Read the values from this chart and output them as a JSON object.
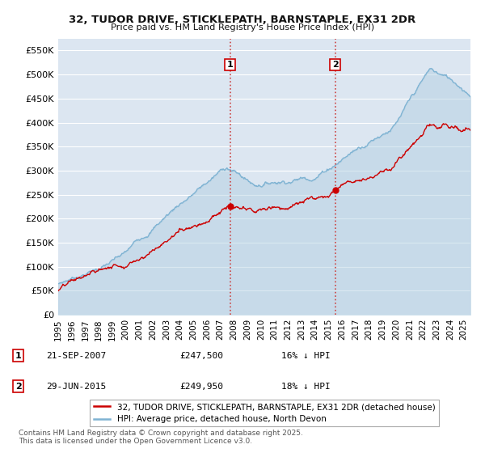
{
  "title_line1": "32, TUDOR DRIVE, STICKLEPATH, BARNSTAPLE, EX31 2DR",
  "title_line2": "Price paid vs. HM Land Registry's House Price Index (HPI)",
  "background_color": "#ffffff",
  "plot_bg_color": "#dce6f1",
  "grid_color": "#ffffff",
  "hpi_color": "#7fb3d3",
  "hpi_fill_color": "#aecde0",
  "price_color": "#cc0000",
  "vline_color": "#cc4444",
  "xmin": 1995,
  "xmax": 2025.5,
  "ymin": 0,
  "ymax": 575000,
  "yticks": [
    0,
    50000,
    100000,
    150000,
    200000,
    250000,
    300000,
    350000,
    400000,
    450000,
    500000,
    550000
  ],
  "ytick_labels": [
    "£0",
    "£50K",
    "£100K",
    "£150K",
    "£200K",
    "£250K",
    "£300K",
    "£350K",
    "£400K",
    "£450K",
    "£500K",
    "£550K"
  ],
  "legend_label_price": "32, TUDOR DRIVE, STICKLEPATH, BARNSTAPLE, EX31 2DR (detached house)",
  "legend_label_hpi": "HPI: Average price, detached house, North Devon",
  "footnote": "Contains HM Land Registry data © Crown copyright and database right 2025.\nThis data is licensed under the Open Government Licence v3.0.",
  "table_row1": [
    "1",
    "21-SEP-2007",
    "£247,500",
    "16% ↓ HPI"
  ],
  "table_row2": [
    "2",
    "29-JUN-2015",
    "£249,950",
    "18% ↓ HPI"
  ],
  "t1": 2007.72,
  "t2": 2015.5
}
